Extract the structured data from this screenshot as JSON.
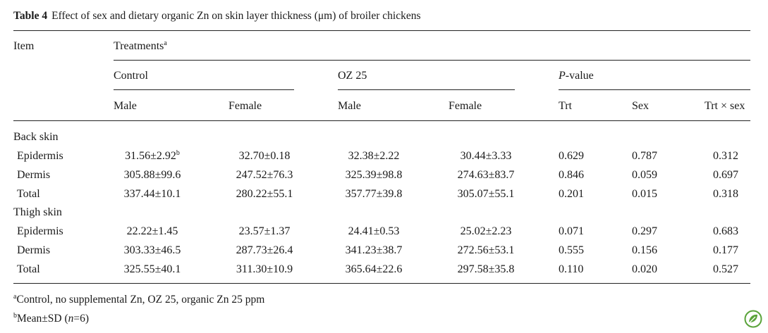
{
  "caption": {
    "label": "Table 4",
    "text": "Effect of sex and dietary organic Zn on skin layer thickness (μm) of broiler chickens"
  },
  "headers": {
    "item": "Item",
    "treatments": "Treatments",
    "treatments_sup": "a",
    "control": "Control",
    "oz25": "OZ 25",
    "p_value_italic": "P",
    "p_value_rest": "-value",
    "male1": "Male",
    "female1": "Female",
    "male2": "Male",
    "female2": "Female",
    "trt": "Trt",
    "sex": "Sex",
    "trt_sex": "Trt × sex"
  },
  "sections": [
    {
      "label": "Back skin",
      "rows": [
        {
          "item": "Epidermis",
          "control_male": "31.56±2.92",
          "control_male_sup": "b",
          "control_female": "32.70±0.18",
          "oz_male": "32.38±2.22",
          "oz_female": "30.44±3.33",
          "trt": "0.629",
          "sex": "0.787",
          "trt_sex": "0.312"
        },
        {
          "item": "Dermis",
          "control_male": "305.88±99.6",
          "control_female": "247.52±76.3",
          "oz_male": "325.39±98.8",
          "oz_female": "274.63±83.7",
          "trt": "0.846",
          "sex": "0.059",
          "trt_sex": "0.697"
        },
        {
          "item": "Total",
          "control_male": "337.44±10.1",
          "control_female": "280.22±55.1",
          "oz_male": "357.77±39.8",
          "oz_female": "305.07±55.1",
          "trt": "0.201",
          "sex": "0.015",
          "trt_sex": "0.318"
        }
      ]
    },
    {
      "label": "Thigh skin",
      "rows": [
        {
          "item": "Epidermis",
          "control_male": "22.22±1.45",
          "control_female": "23.57±1.37",
          "oz_male": "24.41±0.53",
          "oz_female": "25.02±2.23",
          "trt": "0.071",
          "sex": "0.297",
          "trt_sex": "0.683"
        },
        {
          "item": "Dermis",
          "control_male": "303.33±46.5",
          "control_female": "287.73±26.4",
          "oz_male": "341.23±38.7",
          "oz_female": "272.56±53.1",
          "trt": "0.555",
          "sex": "0.156",
          "trt_sex": "0.177"
        },
        {
          "item": "Total",
          "control_male": "325.55±40.1",
          "control_female": "311.30±10.9",
          "oz_male": "365.64±22.6",
          "oz_female": "297.58±35.8",
          "trt": "0.110",
          "sex": "0.020",
          "trt_sex": "0.527"
        }
      ]
    }
  ],
  "footnotes": {
    "a_mark": "a",
    "a_text": "Control, no supplemental Zn, OZ 25, organic Zn 25 ppm",
    "b_mark": "b",
    "b_text_1": "Mean±SD (",
    "b_text_n": "n",
    "b_text_2": "=6)"
  },
  "logo": {
    "icon": "springer-leaf-icon",
    "color": "#5aa33a"
  }
}
